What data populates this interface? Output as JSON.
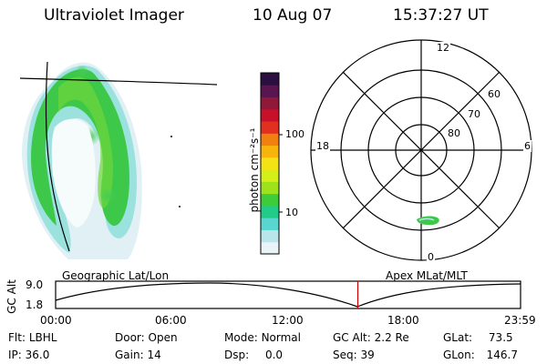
{
  "header": {
    "instrument": "Ultraviolet Imager",
    "date": "10 Aug 07",
    "time": "15:37:27 UT"
  },
  "colorbar": {
    "unit_label": "photon cm⁻²s⁻¹",
    "ticks": [
      {
        "value": "100"
      },
      {
        "value": "10"
      }
    ],
    "colors": [
      "#e8f4f8",
      "#b8e6ea",
      "#5ad6d0",
      "#22cc88",
      "#3fcc3a",
      "#9ee21c",
      "#d4ee18",
      "#f5e214",
      "#f6b40c",
      "#f08010",
      "#e23020",
      "#c8102a",
      "#901838",
      "#5a1450",
      "#2a1040"
    ]
  },
  "polar_plot": {
    "mlt_labels": {
      "top": "12",
      "left": "18",
      "right": "6",
      "bottom": "0"
    },
    "lat_labels": [
      "60",
      "70",
      "80"
    ]
  },
  "timeline": {
    "left_label": "Geographic Lat/Lon",
    "right_label": "Apex MLat/MLT",
    "axis_title": "GC Alt",
    "y_max": "9.0",
    "y_min": "1.8",
    "time_ticks": [
      "00:00",
      "06:00",
      "12:00",
      "18:00",
      "23:59"
    ],
    "current_time_fraction": 0.65
  },
  "status": {
    "row1": [
      {
        "label": "Flt:",
        "value": "LBHL"
      },
      {
        "label": "Door:",
        "value": "Open"
      },
      {
        "label": "Mode:",
        "value": "Normal"
      },
      {
        "label": "GC Alt:",
        "value": "2.2 Re"
      },
      {
        "label": "GLat:",
        "value": "73.5"
      }
    ],
    "row2": [
      {
        "label": "IP:",
        "value": "36.0"
      },
      {
        "label": "Gain:",
        "value": "14"
      },
      {
        "label": "Dsp:",
        "value": "0.0"
      },
      {
        "label": "Seq:",
        "value": "39"
      },
      {
        "label": "GLon:",
        "value": "146.7"
      }
    ]
  }
}
